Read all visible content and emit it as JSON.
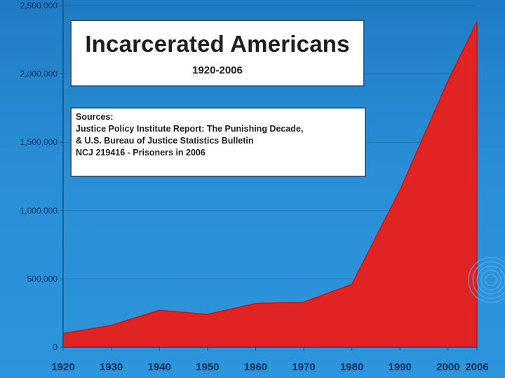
{
  "colors": {
    "background": "#2a8fd6",
    "area_fill": "#e02424",
    "area_stroke": "#c01818",
    "axis": "#1b4f80",
    "gridline": "#1b5f9a"
  },
  "title_box": {
    "title": "Incarcerated Americans",
    "subtitle": "1920-2006"
  },
  "sources_box": {
    "lines": [
      "Sources:",
      "Justice Policy Institute Report: The Punishing Decade,",
      "& U.S. Bureau of Justice Statistics Bulletin",
      "NCJ 219416 - Prisoners in 2006"
    ]
  },
  "chart_data": {
    "type": "area",
    "title": "Incarcerated Americans",
    "subtitle": "1920-2006",
    "xlabel": "",
    "ylabel": "",
    "x": [
      1920,
      1930,
      1940,
      1950,
      1960,
      1970,
      1980,
      1990,
      2000,
      2006
    ],
    "x_tick_labels": [
      "1920",
      "1930",
      "1940",
      "1950",
      "1960",
      "1970",
      "1980",
      "1990",
      "2000",
      "2006"
    ],
    "series": [
      {
        "name": "",
        "values": [
          100000,
          160000,
          270000,
          240000,
          320000,
          330000,
          460000,
          1150000,
          1950000,
          2380000
        ]
      }
    ],
    "y_ticks": [
      0,
      500000,
      1000000,
      1500000,
      2000000,
      2500000
    ],
    "y_tick_labels": [
      "0",
      "500,000",
      "1,000,000",
      "1,500,000",
      "2,000,000",
      "2,500,000"
    ],
    "ylim": [
      0,
      2500000
    ],
    "xlim": [
      1920,
      2006
    ],
    "grid": "horizontal",
    "legend": "none"
  }
}
